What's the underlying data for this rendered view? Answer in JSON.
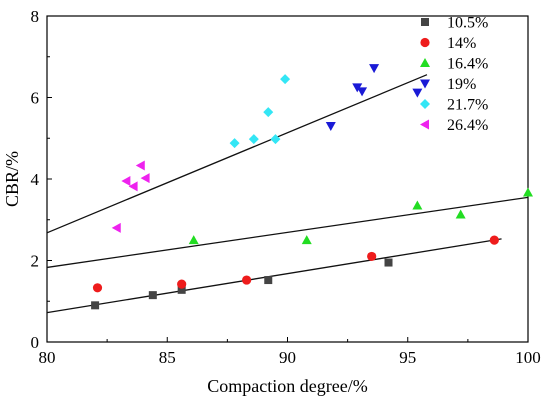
{
  "chart_data": {
    "type": "scatter",
    "title": "",
    "xlabel": "Compaction degree/%",
    "ylabel": "CBR/%",
    "xlim": [
      80,
      100
    ],
    "ylim": [
      0,
      8
    ],
    "xticks": [
      "80",
      "85",
      "90",
      "95",
      "100"
    ],
    "yticks": [
      "0",
      "2",
      "4",
      "6",
      "8"
    ],
    "grid": false,
    "legend_position": "right",
    "series": [
      {
        "name": "10.5%",
        "marker": "square",
        "color": "#444444",
        "points": [
          [
            82.0,
            0.9
          ],
          [
            84.4,
            1.15
          ],
          [
            85.6,
            1.28
          ],
          [
            89.2,
            1.52
          ],
          [
            94.2,
            1.95
          ]
        ]
      },
      {
        "name": "14%",
        "marker": "circle",
        "color": "#ee1c1c",
        "points": [
          [
            82.1,
            1.33
          ],
          [
            85.6,
            1.42
          ],
          [
            88.3,
            1.52
          ],
          [
            93.5,
            2.1
          ],
          [
            98.6,
            2.5
          ]
        ]
      },
      {
        "name": "16.4%",
        "marker": "triangle-up",
        "color": "#22dd22",
        "points": [
          [
            86.1,
            2.5
          ],
          [
            90.8,
            2.5
          ],
          [
            95.4,
            3.35
          ],
          [
            97.2,
            3.13
          ],
          [
            100.0,
            3.67
          ]
        ]
      },
      {
        "name": "19%",
        "marker": "triangle-down",
        "color": "#1a1ad6",
        "points": [
          [
            91.8,
            5.3
          ],
          [
            92.9,
            6.25
          ],
          [
            93.1,
            6.15
          ],
          [
            93.6,
            6.72
          ],
          [
            95.4,
            6.12
          ]
        ]
      },
      {
        "name": "21.7%",
        "marker": "diamond",
        "color": "#33e6f5",
        "points": [
          [
            87.8,
            4.88
          ],
          [
            88.6,
            4.98
          ],
          [
            89.2,
            5.64
          ],
          [
            89.5,
            4.98
          ],
          [
            89.9,
            6.45
          ]
        ]
      },
      {
        "name": "26.4%",
        "marker": "triangle-left",
        "color": "#ee22ee",
        "points": [
          [
            82.9,
            2.8
          ],
          [
            83.3,
            3.95
          ],
          [
            83.6,
            3.82
          ],
          [
            83.9,
            4.33
          ],
          [
            84.1,
            4.02
          ]
        ]
      }
    ],
    "fit_lines": [
      {
        "x": [
          80,
          98.9
        ],
        "y": [
          0.72,
          2.53
        ]
      },
      {
        "x": [
          80,
          100
        ],
        "y": [
          1.83,
          3.55
        ]
      },
      {
        "x": [
          80,
          95.8
        ],
        "y": [
          2.68,
          6.56
        ]
      }
    ]
  }
}
